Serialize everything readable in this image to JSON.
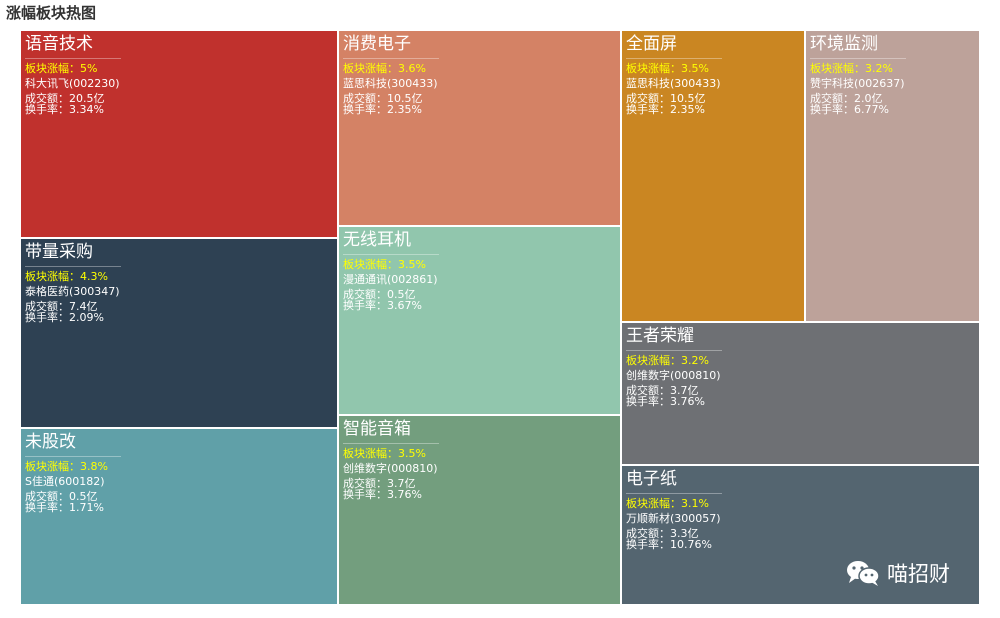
{
  "title": "涨幅板块热图",
  "watermark": {
    "icon": "wechat-icon",
    "text": "喵招财"
  },
  "chart_data": {
    "type": "treemap",
    "title": "涨幅板块热图",
    "sectors": [
      {
        "name": "语音技术",
        "change_label": "板块涨幅：5%",
        "change": 5.0,
        "stock": "科大讯飞(002230)",
        "amount_label": "成交额：20.5亿",
        "amount": 20.5,
        "turnover_label": "换手率：3.34%",
        "turnover": 3.34,
        "color": "#c0312d"
      },
      {
        "name": "带量采购",
        "change_label": "板块涨幅：4.3%",
        "change": 4.3,
        "stock": "泰格医药(300347)",
        "amount_label": "成交额：7.4亿",
        "amount": 7.4,
        "turnover_label": "换手率：2.09%",
        "turnover": 2.09,
        "color": "#2e4153"
      },
      {
        "name": "未股改",
        "change_label": "板块涨幅：3.8%",
        "change": 3.8,
        "stock": "S佳通(600182)",
        "amount_label": "成交额：0.5亿",
        "amount": 0.5,
        "turnover_label": "换手率：1.71%",
        "turnover": 1.71,
        "color": "#60a0a8"
      },
      {
        "name": "消费电子",
        "change_label": "板块涨幅：3.6%",
        "change": 3.6,
        "stock": "蓝思科技(300433)",
        "amount_label": "成交额：10.5亿",
        "amount": 10.5,
        "turnover_label": "换手率：2.35%",
        "turnover": 2.35,
        "color": "#d48265"
      },
      {
        "name": "无线耳机",
        "change_label": "板块涨幅：3.5%",
        "change": 3.5,
        "stock": "漫通通讯(002861)",
        "amount_label": "成交额：0.5亿",
        "amount": 0.5,
        "turnover_label": "换手率：3.67%",
        "turnover": 3.67,
        "color": "#91c6ad"
      },
      {
        "name": "智能音箱",
        "change_label": "板块涨幅：3.5%",
        "change": 3.5,
        "stock": "创维数字(000810)",
        "amount_label": "成交额：3.7亿",
        "amount": 3.7,
        "turnover_label": "换手率：3.76%",
        "turnover": 3.76,
        "color": "#739e7e"
      },
      {
        "name": "全面屏",
        "change_label": "板块涨幅：3.5%",
        "change": 3.5,
        "stock": "蓝思科技(300433)",
        "amount_label": "成交额：10.5亿",
        "amount": 10.5,
        "turnover_label": "换手率：2.35%",
        "turnover": 2.35,
        "color": "#ca8622"
      },
      {
        "name": "环境监测",
        "change_label": "板块涨幅：3.2%",
        "change": 3.2,
        "stock": "赞宇科技(002637)",
        "amount_label": "成交额：2.0亿",
        "amount": 2.0,
        "turnover_label": "换手率：6.77%",
        "turnover": 6.77,
        "color": "#bda29a"
      },
      {
        "name": "王者荣耀",
        "change_label": "板块涨幅：3.2%",
        "change": 3.2,
        "stock": "创维数字(000810)",
        "amount_label": "成交额：3.7亿",
        "amount": 3.7,
        "turnover_label": "换手率：3.76%",
        "turnover": 3.76,
        "color": "#6e7074"
      },
      {
        "name": "电子纸",
        "change_label": "板块涨幅：3.1%",
        "change": 3.1,
        "stock": "万顺新材(300057)",
        "amount_label": "成交额：3.3亿",
        "amount": 3.3,
        "turnover_label": "换手率：10.76%",
        "turnover": 10.76,
        "color": "#546570"
      }
    ]
  }
}
